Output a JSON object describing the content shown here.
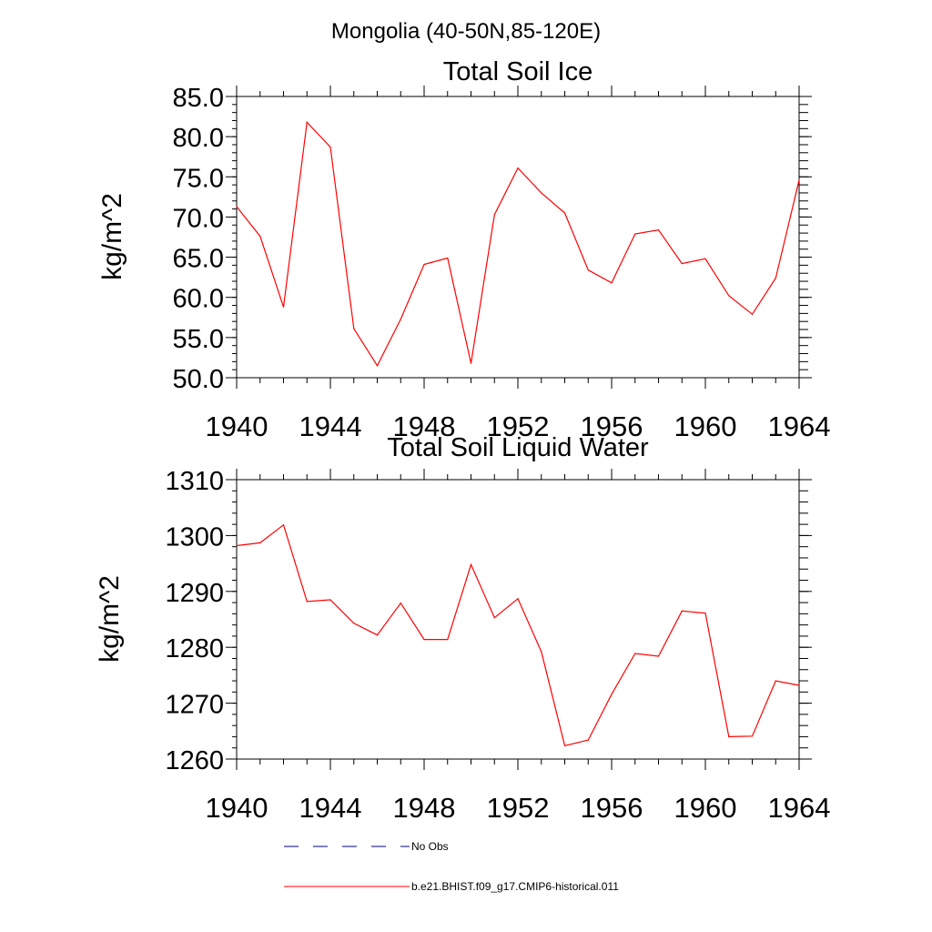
{
  "figure": {
    "title": "Mongolia (40-50N,85-120E)"
  },
  "legend": {
    "entries": [
      {
        "label": "No Obs",
        "color": "#000080",
        "dash": "dashed"
      },
      {
        "label": "b.e21.BHIST.f09_g17.CMIP6-historical.011",
        "color": "#ff0000",
        "dash": "solid"
      }
    ]
  },
  "chart_data": [
    {
      "type": "line",
      "title": "Total Soil Ice",
      "xlabel": "",
      "ylabel": "kg/m^2",
      "xlim": [
        1940,
        1964
      ],
      "ylim": [
        50,
        85
      ],
      "xticks": [
        1940,
        1944,
        1948,
        1952,
        1956,
        1960,
        1964
      ],
      "yticks": [
        50,
        55,
        60,
        65,
        70,
        75,
        80,
        85
      ],
      "ytick_labels": [
        "50.0",
        "55.0",
        "60.0",
        "65.0",
        "70.0",
        "75.0",
        "80.0",
        "85.0"
      ],
      "grid": false,
      "series": [
        {
          "color": "#ff0000",
          "x": [
            1940,
            1941,
            1942,
            1943,
            1944,
            1945,
            1946,
            1947,
            1948,
            1949,
            1950,
            1951,
            1952,
            1953,
            1954,
            1955,
            1956,
            1957,
            1958,
            1959,
            1960,
            1961,
            1962,
            1963,
            1964
          ],
          "values": [
            71.3,
            67.6,
            58.8,
            81.8,
            78.7,
            56.1,
            51.5,
            57.3,
            64.1,
            64.9,
            51.8,
            70.3,
            76.1,
            73.0,
            70.5,
            63.4,
            61.8,
            67.9,
            68.4,
            64.2,
            64.8,
            60.2,
            57.9,
            62.4,
            74.6
          ]
        }
      ]
    },
    {
      "type": "line",
      "title": "Total Soil Liquid Water",
      "xlabel": "",
      "ylabel": "kg/m^2",
      "xlim": [
        1940,
        1964
      ],
      "ylim": [
        1260,
        1310
      ],
      "xticks": [
        1940,
        1944,
        1948,
        1952,
        1956,
        1960,
        1964
      ],
      "yticks": [
        1260,
        1270,
        1280,
        1290,
        1300,
        1310
      ],
      "ytick_labels": [
        "1260",
        "1270",
        "1280",
        "1290",
        "1300",
        "1310"
      ],
      "grid": false,
      "series": [
        {
          "color": "#ff0000",
          "x": [
            1940,
            1941,
            1942,
            1943,
            1944,
            1945,
            1946,
            1947,
            1948,
            1949,
            1950,
            1951,
            1952,
            1953,
            1954,
            1955,
            1956,
            1957,
            1958,
            1959,
            1960,
            1961,
            1962,
            1963,
            1964
          ],
          "values": [
            1298.2,
            1298.7,
            1301.9,
            1288.2,
            1288.5,
            1284.3,
            1282.2,
            1287.9,
            1281.4,
            1281.4,
            1294.8,
            1285.3,
            1288.7,
            1279.2,
            1262.4,
            1263.4,
            1271.6,
            1278.9,
            1278.4,
            1286.5,
            1286.1,
            1264.0,
            1264.1,
            1274.0,
            1273.2
          ]
        }
      ]
    }
  ]
}
